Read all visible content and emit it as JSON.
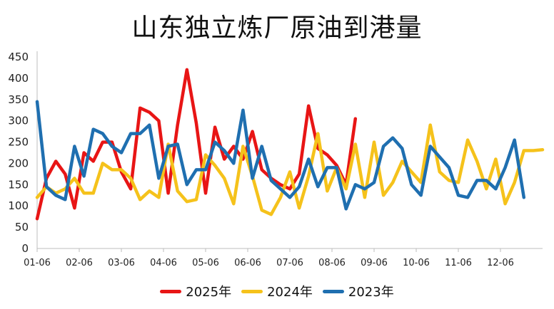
{
  "chart_data": {
    "type": "line",
    "title": "山东独立炼厂原油到港量",
    "ylim": [
      0,
      450
    ],
    "yticks": [
      "0",
      "50",
      "100",
      "150",
      "200",
      "250",
      "300",
      "350",
      "400",
      "450"
    ],
    "xticks": [
      "01-06",
      "02-06",
      "03-06",
      "04-06",
      "05-06",
      "06-06",
      "07-06",
      "08-06",
      "09-06",
      "10-06",
      "11-06",
      "12-06"
    ],
    "xlabel": "",
    "ylabel": "",
    "grid": false,
    "legend_position": "bottom",
    "series": [
      {
        "name": "2025年",
        "color": "#e81515",
        "values": [
          70,
          165,
          205,
          175,
          95,
          225,
          205,
          250,
          250,
          180,
          140,
          330,
          320,
          300,
          130,
          290,
          420,
          295,
          130,
          285,
          210,
          240,
          210,
          275,
          185,
          165,
          150,
          140,
          175,
          335,
          235,
          220,
          195,
          150,
          305
        ]
      },
      {
        "name": "2024年",
        "color": "#f5c21b",
        "values": [
          120,
          145,
          130,
          140,
          165,
          130,
          130,
          200,
          185,
          185,
          165,
          115,
          135,
          120,
          245,
          135,
          110,
          115,
          220,
          195,
          165,
          105,
          240,
          170,
          90,
          80,
          120,
          180,
          95,
          170,
          270,
          135,
          190,
          140,
          245,
          120,
          250,
          125,
          155,
          205,
          180,
          155,
          290,
          180,
          160,
          155,
          255,
          205,
          140,
          210,
          105,
          155,
          230,
          230,
          232
        ]
      },
      {
        "name": "2023年",
        "color": "#1f6fb0",
        "values": [
          345,
          145,
          125,
          115,
          240,
          170,
          280,
          270,
          240,
          225,
          270,
          270,
          290,
          165,
          240,
          245,
          150,
          185,
          185,
          250,
          230,
          200,
          325,
          165,
          240,
          160,
          140,
          120,
          145,
          210,
          145,
          190,
          190,
          93,
          150,
          140,
          155,
          240,
          260,
          235,
          150,
          125,
          240,
          215,
          190,
          125,
          120,
          160,
          160,
          140,
          190,
          255,
          120
        ]
      }
    ]
  }
}
